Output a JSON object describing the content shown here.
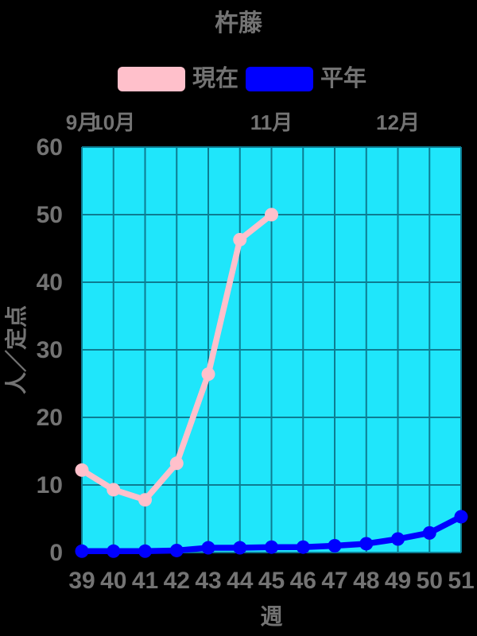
{
  "chart_data": {
    "type": "line",
    "title": "杵藤",
    "xlabel": "週",
    "ylabel": "人／定点",
    "x": [
      39,
      40,
      41,
      42,
      43,
      44,
      45,
      46,
      47,
      48,
      49,
      50,
      51
    ],
    "x_tick_labels": [
      "39",
      "40",
      "41",
      "42",
      "43",
      "44",
      "45",
      "46",
      "47",
      "48",
      "49",
      "50",
      "51"
    ],
    "y_ticks": [
      0,
      10,
      20,
      30,
      40,
      50,
      60
    ],
    "ylim": [
      0,
      60
    ],
    "grid": true,
    "legend_position": "top-center",
    "colors": {
      "background": "#000000",
      "plot_bg": "#1FE6FB",
      "grid": "#0D7C92",
      "text": "#737373"
    },
    "months": [
      {
        "label": "9月",
        "week": 39
      },
      {
        "label": "10月",
        "week": 40
      },
      {
        "label": "11月",
        "week": 45
      },
      {
        "label": "12月",
        "week": 49
      }
    ],
    "series": [
      {
        "name": "現在",
        "color": "#FFC0CB",
        "x": [
          39,
          40,
          41,
          42,
          43,
          44,
          45
        ],
        "values": [
          12.2,
          9.3,
          7.8,
          13.2,
          26.4,
          46.3,
          50.0
        ]
      },
      {
        "name": "平年",
        "color": "#0000FF",
        "x": [
          39,
          40,
          41,
          42,
          43,
          44,
          45,
          46,
          47,
          48,
          49,
          50,
          51
        ],
        "values": [
          0.2,
          0.2,
          0.2,
          0.3,
          0.7,
          0.7,
          0.8,
          0.8,
          1.0,
          1.3,
          2.0,
          2.9,
          5.3
        ]
      }
    ]
  }
}
